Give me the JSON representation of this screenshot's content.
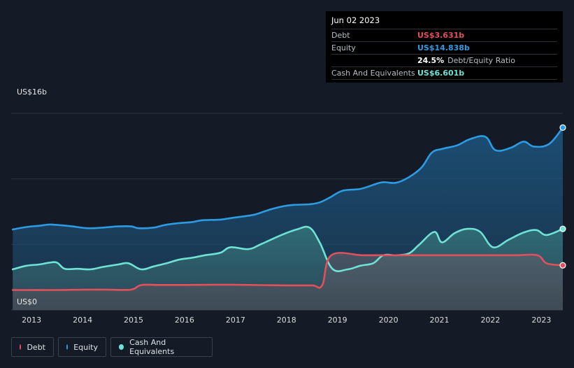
{
  "tooltip": {
    "date": "Jun 02 2023",
    "debt_label": "Debt",
    "debt_value": "US$3.631b",
    "equity_label": "Equity",
    "equity_value": "US$14.838b",
    "ratio_value": "24.5%",
    "ratio_label": "Debt/Equity Ratio",
    "cash_label": "Cash And Equivalents",
    "cash_value": "US$6.601b"
  },
  "legend": {
    "debt": "Debt",
    "equity": "Equity",
    "cash": "Cash And Equivalents"
  },
  "colors": {
    "debt": "#e2505a",
    "equity": "#2d9be2",
    "cash": "#6ee3d5",
    "background": "#151b26"
  },
  "chart_data": {
    "type": "area",
    "ylim": [
      0,
      16
    ],
    "y_unit": "US$ billions",
    "y_ticks": [
      {
        "value": 16,
        "label": "US$16b"
      },
      {
        "value": 0,
        "label": "US$0"
      }
    ],
    "xlim": [
      2012.6,
      2023.42
    ],
    "x_ticks": [
      "2013",
      "2014",
      "2015",
      "2016",
      "2017",
      "2018",
      "2019",
      "2020",
      "2021",
      "2022",
      "2023"
    ],
    "grid": true,
    "legend_position": "bottom-left",
    "series": [
      {
        "name": "Equity",
        "key": "equity",
        "points": [
          [
            2012.63,
            6.55
          ],
          [
            2012.9,
            6.75
          ],
          [
            2013.15,
            6.85
          ],
          [
            2013.35,
            6.95
          ],
          [
            2013.55,
            6.9
          ],
          [
            2013.8,
            6.8
          ],
          [
            2014.1,
            6.65
          ],
          [
            2014.4,
            6.7
          ],
          [
            2014.7,
            6.8
          ],
          [
            2014.95,
            6.8
          ],
          [
            2015.1,
            6.65
          ],
          [
            2015.4,
            6.7
          ],
          [
            2015.6,
            6.9
          ],
          [
            2015.85,
            7.05
          ],
          [
            2016.15,
            7.15
          ],
          [
            2016.35,
            7.3
          ],
          [
            2016.7,
            7.35
          ],
          [
            2016.95,
            7.5
          ],
          [
            2017.3,
            7.7
          ],
          [
            2017.45,
            7.85
          ],
          [
            2017.7,
            8.2
          ],
          [
            2017.95,
            8.45
          ],
          [
            2018.15,
            8.55
          ],
          [
            2018.45,
            8.6
          ],
          [
            2018.65,
            8.75
          ],
          [
            2018.85,
            9.15
          ],
          [
            2019.1,
            9.7
          ],
          [
            2019.45,
            9.85
          ],
          [
            2019.75,
            10.25
          ],
          [
            2019.9,
            10.4
          ],
          [
            2020.15,
            10.35
          ],
          [
            2020.4,
            10.8
          ],
          [
            2020.65,
            11.6
          ],
          [
            2020.85,
            12.8
          ],
          [
            2021.05,
            13.1
          ],
          [
            2021.35,
            13.4
          ],
          [
            2021.6,
            13.9
          ],
          [
            2021.9,
            14.1
          ],
          [
            2022.1,
            13.0
          ],
          [
            2022.4,
            13.2
          ],
          [
            2022.65,
            13.7
          ],
          [
            2022.85,
            13.3
          ],
          [
            2023.15,
            13.5
          ],
          [
            2023.42,
            14.84
          ]
        ]
      },
      {
        "name": "Cash And Equivalents",
        "key": "cash",
        "points": [
          [
            2012.63,
            3.3
          ],
          [
            2012.9,
            3.6
          ],
          [
            2013.15,
            3.7
          ],
          [
            2013.35,
            3.85
          ],
          [
            2013.5,
            3.85
          ],
          [
            2013.65,
            3.35
          ],
          [
            2013.9,
            3.35
          ],
          [
            2014.15,
            3.3
          ],
          [
            2014.4,
            3.5
          ],
          [
            2014.7,
            3.7
          ],
          [
            2014.9,
            3.8
          ],
          [
            2015.15,
            3.3
          ],
          [
            2015.4,
            3.55
          ],
          [
            2015.65,
            3.8
          ],
          [
            2015.9,
            4.1
          ],
          [
            2016.15,
            4.25
          ],
          [
            2016.4,
            4.45
          ],
          [
            2016.7,
            4.65
          ],
          [
            2016.9,
            5.1
          ],
          [
            2017.25,
            4.95
          ],
          [
            2017.5,
            5.35
          ],
          [
            2017.9,
            6.1
          ],
          [
            2018.2,
            6.55
          ],
          [
            2018.45,
            6.7
          ],
          [
            2018.65,
            5.5
          ],
          [
            2018.9,
            3.35
          ],
          [
            2019.2,
            3.3
          ],
          [
            2019.45,
            3.6
          ],
          [
            2019.7,
            3.8
          ],
          [
            2019.9,
            4.45
          ],
          [
            2020.15,
            4.45
          ],
          [
            2020.4,
            4.6
          ],
          [
            2020.6,
            5.3
          ],
          [
            2020.9,
            6.35
          ],
          [
            2021.05,
            5.5
          ],
          [
            2021.3,
            6.25
          ],
          [
            2021.55,
            6.6
          ],
          [
            2021.8,
            6.35
          ],
          [
            2022.05,
            5.1
          ],
          [
            2022.35,
            5.7
          ],
          [
            2022.65,
            6.3
          ],
          [
            2022.9,
            6.5
          ],
          [
            2023.1,
            6.1
          ],
          [
            2023.42,
            6.6
          ]
        ]
      },
      {
        "name": "Debt",
        "key": "debt",
        "points": [
          [
            2012.63,
            1.62
          ],
          [
            2013.5,
            1.62
          ],
          [
            2014.0,
            1.65
          ],
          [
            2014.5,
            1.65
          ],
          [
            2014.95,
            1.65
          ],
          [
            2015.15,
            2.02
          ],
          [
            2015.5,
            2.03
          ],
          [
            2016.0,
            2.03
          ],
          [
            2016.5,
            2.05
          ],
          [
            2017.0,
            2.05
          ],
          [
            2017.5,
            2.02
          ],
          [
            2018.0,
            2.0
          ],
          [
            2018.5,
            2.0
          ],
          [
            2018.7,
            2.0
          ],
          [
            2018.88,
            4.45
          ],
          [
            2019.5,
            4.45
          ],
          [
            2020.0,
            4.45
          ],
          [
            2020.5,
            4.45
          ],
          [
            2021.0,
            4.45
          ],
          [
            2021.5,
            4.45
          ],
          [
            2022.0,
            4.45
          ],
          [
            2022.5,
            4.45
          ],
          [
            2022.92,
            4.45
          ],
          [
            2023.1,
            3.8
          ],
          [
            2023.42,
            3.63
          ]
        ]
      }
    ]
  }
}
